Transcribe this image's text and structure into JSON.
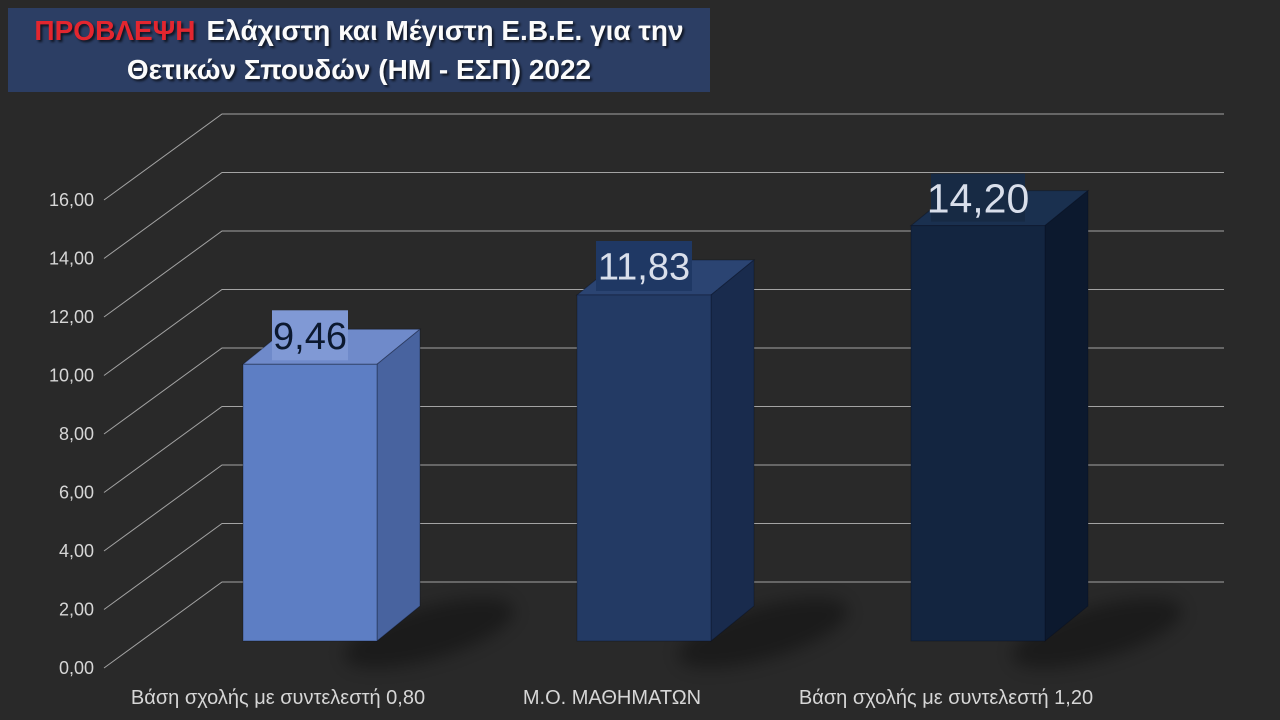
{
  "title": {
    "highlight": "ΠΡΟΒΛΕΨΗ",
    "line1": "Ελάχιστη και Μέγιστη Ε.Β.Ε. για την",
    "line2": "Θετικών Σπουδών (ΗΜ - ΕΣΠ) 2022"
  },
  "chart_data": {
    "type": "bar",
    "projection": "3d-perspective",
    "title": "ΠΡΟΒΛΕΨΗ Ελάχιστη και Μέγιστη Ε.Β.Ε. για την Θετικών Σπουδών (ΗΜ - ΕΣΠ) 2022",
    "categories": [
      "Βάση σχολής με συντελεστή 0,80",
      "Μ.Ο. ΜΑΘΗΜΑΤΩΝ",
      "Βάση σχολής με συντελεστή 1,20"
    ],
    "values": [
      9.46,
      11.83,
      14.2
    ],
    "value_labels": [
      "9,46",
      "11,83",
      "14,20"
    ],
    "ylim": [
      0,
      16
    ],
    "ytick_interval": 2,
    "ytick_labels": [
      "0,00",
      "2,00",
      "4,00",
      "6,00",
      "8,00",
      "10,00",
      "12,00",
      "14,00",
      "16,00"
    ],
    "grid": true,
    "legend": false,
    "xlabel": "",
    "ylabel": "",
    "background_color": "#292929",
    "gridline_color": "#a3a3a3",
    "axis_text_color": "#d6d6d6",
    "title_colors": {
      "bg": "#2c3e64",
      "text": "#fbfbfb",
      "highlight": "#e3262f"
    },
    "series_colors": [
      {
        "front": "#5d7ec4",
        "top": "#6f8aca",
        "side": "#48639f",
        "label_bg": "#8099d5",
        "label_text": "#0c1930"
      },
      {
        "front": "#233a64",
        "top": "#2b4472",
        "side": "#192b4d",
        "label_bg": "#1f3864",
        "label_text": "#d9dfeb"
      },
      {
        "front": "#132540",
        "top": "#1a304f",
        "side": "#0c192e",
        "label_bg": "#172a44",
        "label_text": "#d9dfeb"
      }
    ]
  }
}
